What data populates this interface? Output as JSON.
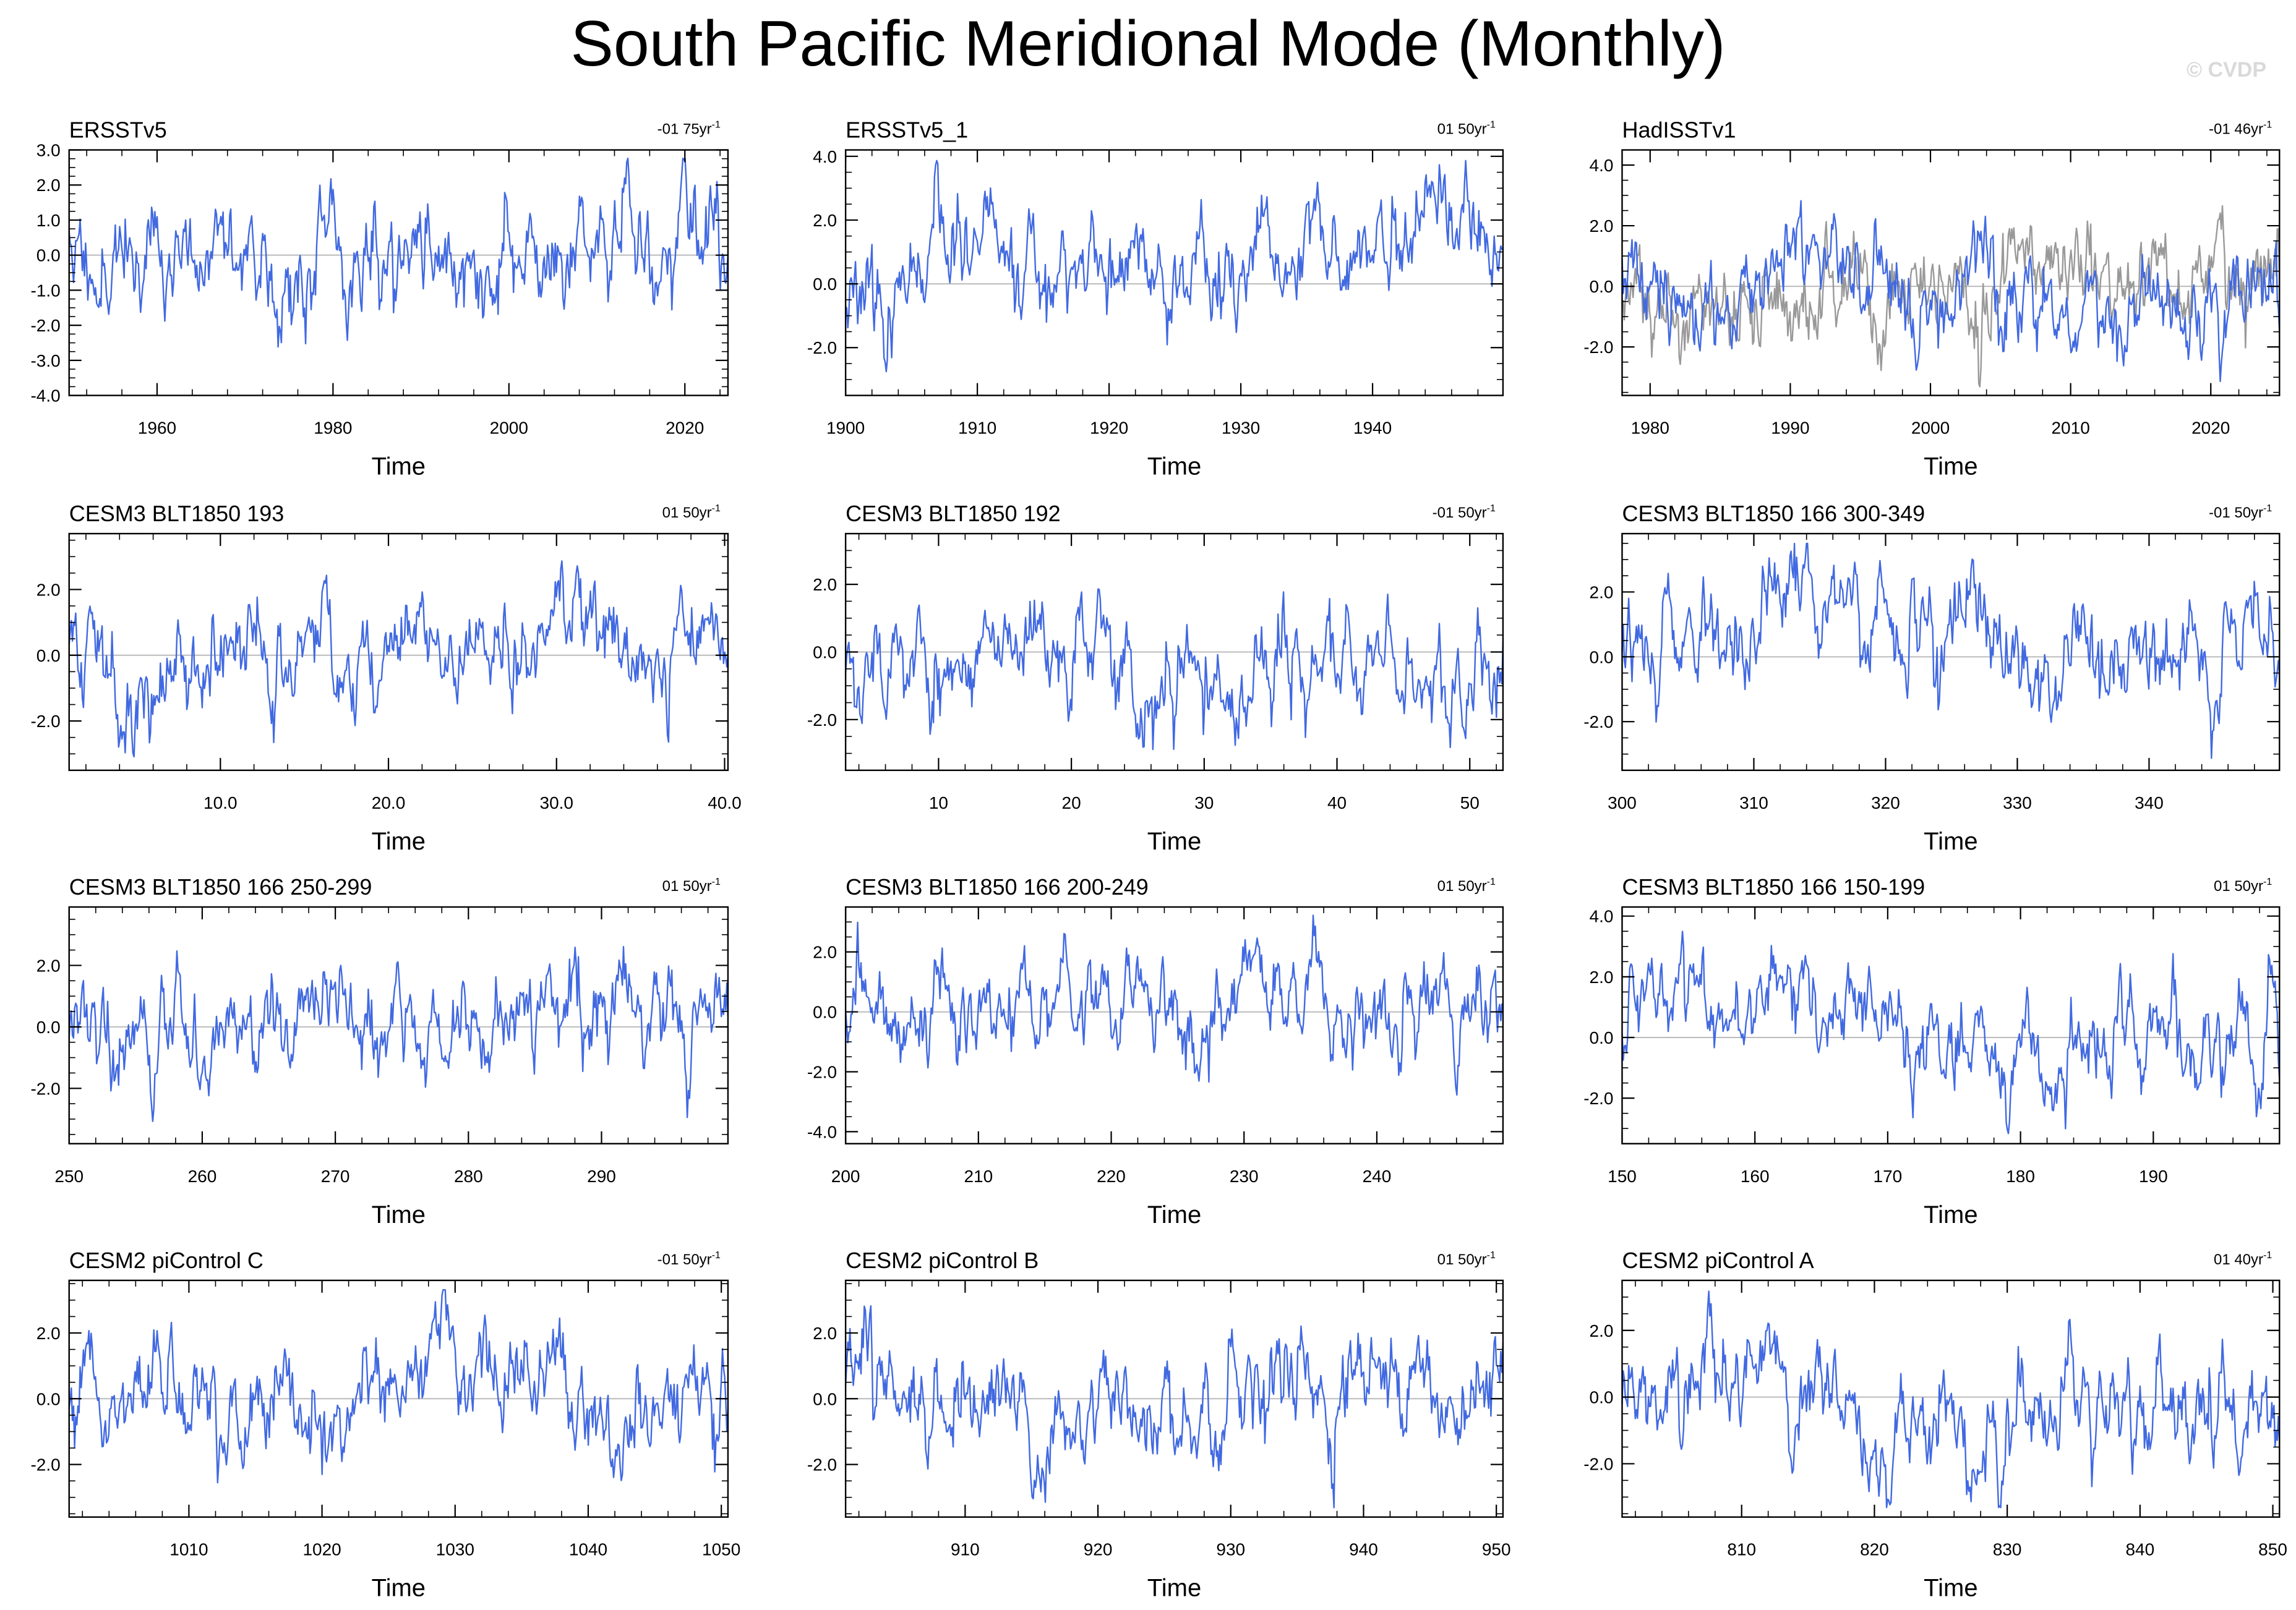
{
  "title": "South Pacific Meridional Mode (Monthly)",
  "watermark": "© CVDP",
  "colors": {
    "series": "#4169e1",
    "obs_overlay": "#999999",
    "zero_line": "#bbbbbb",
    "axis": "#000000"
  },
  "chart_data": [
    {
      "type": "line",
      "title": "ERSSTv5",
      "trend": "-01 75yr",
      "xlabel": "Time",
      "xlim": [
        1950,
        2024.9
      ],
      "xticks": [
        1960,
        1980,
        2000,
        2020
      ],
      "xtick_labels": [
        "1960",
        "1980",
        "2000",
        "2020"
      ],
      "ylim": [
        -4,
        3
      ],
      "yticks": [
        3,
        2,
        1,
        0,
        -1,
        -2,
        -3,
        -4
      ],
      "ytick_labels": [
        "3.0",
        "2.0",
        "1.0",
        "0.0",
        "-1.0",
        "-2.0",
        "-3.0",
        "-4.0"
      ],
      "amp": 1.0,
      "seed": 11,
      "overlay": false
    },
    {
      "type": "line",
      "title": "ERSSTv5_1",
      "trend": "01 50yr",
      "xlabel": "Time",
      "xlim": [
        1900,
        1949.9
      ],
      "xticks": [
        1900,
        1910,
        1920,
        1930,
        1940
      ],
      "xtick_labels": [
        "1900",
        "1910",
        "1920",
        "1930",
        "1940"
      ],
      "ylim": [
        -3.5,
        4.2
      ],
      "yticks": [
        4,
        2,
        0,
        -2
      ],
      "ytick_labels": [
        "4.0",
        "2.0",
        "0.0",
        "-2.0"
      ],
      "amp": 1.0,
      "seed": 23,
      "overlay": false
    },
    {
      "type": "line",
      "title": "HadISSTv1",
      "trend": "-01 46yr",
      "xlabel": "Time",
      "xlim": [
        1978,
        2024.9
      ],
      "xticks": [
        1980,
        1990,
        2000,
        2010,
        2020
      ],
      "xtick_labels": [
        "1980",
        "1990",
        "2000",
        "2010",
        "2020"
      ],
      "ylim": [
        -3.6,
        4.5
      ],
      "yticks": [
        4,
        2,
        0,
        -2
      ],
      "ytick_labels": [
        "4.0",
        "2.0",
        "0.0",
        "-2.0"
      ],
      "amp": 1.0,
      "seed": 37,
      "overlay": true
    },
    {
      "type": "line",
      "title": "CESM3 BLT1850 193",
      "trend": "01 50yr",
      "xlabel": "Time",
      "xlim": [
        1,
        40.2
      ],
      "xticks": [
        10,
        20,
        30,
        40
      ],
      "xtick_labels": [
        "10.0",
        "20.0",
        "30.0",
        "40.0"
      ],
      "ylim": [
        -3.5,
        3.7
      ],
      "yticks": [
        2,
        0,
        -2
      ],
      "ytick_labels": [
        "2.0",
        "0.0",
        "-2.0"
      ],
      "amp": 1.0,
      "seed": 41,
      "overlay": false
    },
    {
      "type": "line",
      "title": "CESM3 BLT1850 192",
      "trend": "-01 50yr",
      "xlabel": "Time",
      "xlim": [
        3,
        52.5
      ],
      "xticks": [
        10,
        20,
        30,
        40,
        50
      ],
      "xtick_labels": [
        "10",
        "20",
        "30",
        "40",
        "50"
      ],
      "ylim": [
        -3.5,
        3.5
      ],
      "yticks": [
        2,
        0,
        -2
      ],
      "ytick_labels": [
        "2.0",
        "0.0",
        "-2.0"
      ],
      "amp": 1.0,
      "seed": 53,
      "overlay": false
    },
    {
      "type": "line",
      "title": "CESM3 BLT1850 166 300-349",
      "trend": "-01 50yr",
      "xlabel": "Time",
      "xlim": [
        300,
        349.9
      ],
      "xticks": [
        300,
        310,
        320,
        330,
        340
      ],
      "xtick_labels": [
        "300",
        "310",
        "320",
        "330",
        "340"
      ],
      "ylim": [
        -3.5,
        3.8
      ],
      "yticks": [
        2,
        0,
        -2
      ],
      "ytick_labels": [
        "2.0",
        "0.0",
        "-2.0"
      ],
      "amp": 1.0,
      "seed": 67,
      "overlay": false
    },
    {
      "type": "line",
      "title": "CESM3 BLT1850 166 250-299",
      "trend": "01 50yr",
      "xlabel": "Time",
      "xlim": [
        250,
        299.5
      ],
      "xticks": [
        250,
        260,
        270,
        280,
        290
      ],
      "xtick_labels": [
        "250",
        "260",
        "270",
        "280",
        "290"
      ],
      "ylim": [
        -3.8,
        3.9
      ],
      "yticks": [
        2,
        0,
        -2
      ],
      "ytick_labels": [
        "2.0",
        "0.0",
        "-2.0"
      ],
      "amp": 1.0,
      "seed": 79,
      "overlay": false
    },
    {
      "type": "line",
      "title": "CESM3 BLT1850 166 200-249",
      "trend": "01 50yr",
      "xlabel": "Time",
      "xlim": [
        200,
        249.5
      ],
      "xticks": [
        200,
        210,
        220,
        230,
        240
      ],
      "xtick_labels": [
        "200",
        "210",
        "220",
        "230",
        "240"
      ],
      "ylim": [
        -4.4,
        3.5
      ],
      "yticks": [
        2,
        0,
        -2,
        -4
      ],
      "ytick_labels": [
        "2.0",
        "0.0",
        "-2.0",
        "-4.0"
      ],
      "amp": 1.0,
      "seed": 83,
      "overlay": false
    },
    {
      "type": "line",
      "title": "CESM3 BLT1850 166 150-199",
      "trend": "01 50yr",
      "xlabel": "Time",
      "xlim": [
        150,
        199.5
      ],
      "xticks": [
        150,
        160,
        170,
        180,
        190
      ],
      "xtick_labels": [
        "150",
        "160",
        "170",
        "180",
        "190"
      ],
      "ylim": [
        -3.5,
        4.3
      ],
      "yticks": [
        4,
        2,
        0,
        -2
      ],
      "ytick_labels": [
        "4.0",
        "2.0",
        "0.0",
        "-2.0"
      ],
      "amp": 1.0,
      "seed": 97,
      "overlay": false
    },
    {
      "type": "line",
      "title": "CESM2 piControl C",
      "trend": "-01 50yr",
      "xlabel": "Time",
      "xlim": [
        1001,
        1050.5
      ],
      "xticks": [
        1010,
        1020,
        1030,
        1040,
        1050
      ],
      "xtick_labels": [
        "1010",
        "1020",
        "1030",
        "1040",
        "1050"
      ],
      "ylim": [
        -3.6,
        3.6
      ],
      "yticks": [
        2,
        0,
        -2
      ],
      "ytick_labels": [
        "2.0",
        "0.0",
        "-2.0"
      ],
      "amp": 1.0,
      "seed": 101,
      "overlay": false
    },
    {
      "type": "line",
      "title": "CESM2 piControl B",
      "trend": "01 50yr",
      "xlabel": "Time",
      "xlim": [
        901,
        950.5
      ],
      "xticks": [
        910,
        920,
        930,
        940,
        950
      ],
      "xtick_labels": [
        "910",
        "920",
        "930",
        "940",
        "950"
      ],
      "ylim": [
        -3.6,
        3.6
      ],
      "yticks": [
        2,
        0,
        -2
      ],
      "ytick_labels": [
        "2.0",
        "0.0",
        "-2.0"
      ],
      "amp": 1.0,
      "seed": 113,
      "overlay": false
    },
    {
      "type": "line",
      "title": "CESM2 piControl A",
      "trend": "01 40yr",
      "xlabel": "Time",
      "xlim": [
        801,
        850.5
      ],
      "xticks": [
        810,
        820,
        830,
        840,
        850
      ],
      "xtick_labels": [
        "810",
        "820",
        "830",
        "840",
        "850"
      ],
      "ylim": [
        -3.6,
        3.5
      ],
      "yticks": [
        2,
        0,
        -2
      ],
      "ytick_labels": [
        "2.0",
        "0.0",
        "-2.0"
      ],
      "amp": 1.0,
      "seed": 127,
      "overlay": false
    }
  ]
}
